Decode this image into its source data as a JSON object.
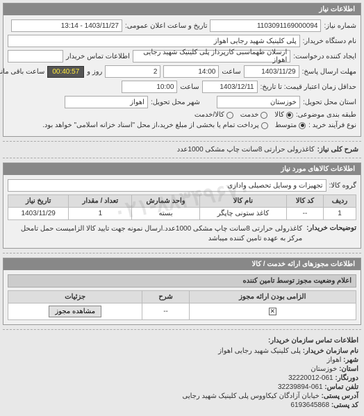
{
  "watermark": "۰۲۱-۸۸۳۴۹۶۷۰",
  "panel1": {
    "title": "اطلاعات نیاز",
    "need_no_label": "شماره نیاز:",
    "need_no": "1103091169000094",
    "announce_label": "تاریخ و ساعت اعلان عمومی:",
    "announce_val": "1403/11/27 - 13:14",
    "device_label": "نام دستگاه خریدار:",
    "device_val": "پلی کلینیک شهید رجایی اهواز",
    "creator_label": "ایجاد کننده درخواست:",
    "creator_val": "ارسلان طهماسبی کارپرداز پلی کلینیک شهید رجایی اهواز",
    "contact_label": "اطلاعات تماس خریدار",
    "contact_val": "",
    "deadline_label": "مهلت ارسال پاسخ:",
    "deadline_until": "تا تاریخ:",
    "deadline_date": "1403/11/29",
    "time_label": "ساعت",
    "deadline_time": "14:00",
    "day_label": "روز و",
    "days_left": "2",
    "remain_label": "ساعت باقی مانده",
    "timer": "00:40:57",
    "price_valid_label": "حداقل زمان اعتبار قیمت: تا تاریخ:",
    "price_valid_date": "1403/12/11",
    "price_valid_time": "10:00",
    "province_label": "استان محل تحویل:",
    "province_val": "خوزستان",
    "city_label": "شهر محل تحویل:",
    "city_val": "اهواز",
    "category_label": "طبقه بندی موضوعی:",
    "cat_opts": [
      "کالا",
      "خدمت",
      "کالا/خدمت"
    ],
    "cat_selected": 0,
    "process_label": "نوع فرآیند خرید :",
    "proc_opts": [
      "متوسط",
      "پرداخت تمام یا بخشی از مبلغ خرید،از محل \"اسناد خزانه اسلامی\" خواهد بود."
    ],
    "proc_selected": 0
  },
  "need_title_label": "شرح کلی نیاز:",
  "need_title": "کاغذرولی حرارتی 8سانت چاپ مشکی 1000عدد",
  "panel2": {
    "title": "اطلاعات کالاهای مورد نیاز",
    "group_label": "گروه کالا:",
    "group_val": "تجهیزات و وسایل تحصیلی واداری",
    "cols": [
      "ردیف",
      "کد کالا",
      "نام کالا",
      "واحد شمارش",
      "تعداد / مقدار",
      "تاریخ نیاز"
    ],
    "rows": [
      [
        "1",
        "--",
        "کاغذ ستونی چاپگر",
        "بسته",
        "1",
        "1403/11/29"
      ]
    ],
    "desc_label": "توضیحات خریدار:",
    "desc_text": "کاغذرولی حرارتی 8سانت چاپ مشکی 1000عدد.ارسال نمونه جهت تایید کالا الزامیست حمل تامحل مرکز به عهده تامین کننده میباشد"
  },
  "panel3": {
    "title": "اطلاعات مجوزهای ارائه خدمت / کالا",
    "sub": "اعلام وضعیت مجوز توسط تامین کننده",
    "cols": [
      "الزامی بودن ارائه مجوز",
      "شرح",
      "جزئیات"
    ],
    "row": {
      "mandatory": true,
      "desc": "--",
      "detail_btn": "مشاهده مجوز"
    }
  },
  "panel4": {
    "title": "اطلاعات تماس سازمان خریدار:",
    "lines": [
      [
        "نام سازمان خریدار:",
        "پلی کلینیک شهید رجایی اهواز"
      ],
      [
        "شهر:",
        "اهواز"
      ],
      [
        "استان:",
        "خوزستان"
      ],
      [
        "دورنگار:",
        "061-32220012"
      ],
      [
        "تلفن تماس:",
        "061-32239894"
      ],
      [
        "آدرس پستی:",
        "خیابان آزادگان کیکاووس پلی کلینیک شهید رجایی"
      ],
      [
        "کد پستی:",
        "6193645868"
      ]
    ]
  }
}
